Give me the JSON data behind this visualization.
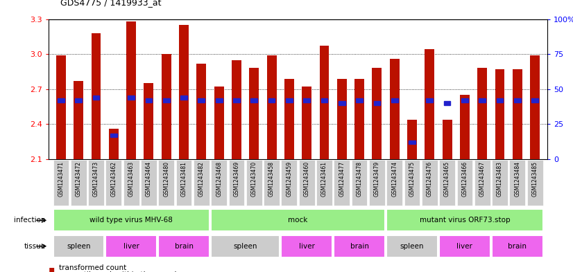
{
  "title": "GDS4775 / 1419933_at",
  "samples": [
    "GSM1243471",
    "GSM1243472",
    "GSM1243473",
    "GSM1243462",
    "GSM1243463",
    "GSM1243464",
    "GSM1243480",
    "GSM1243481",
    "GSM1243482",
    "GSM1243468",
    "GSM1243469",
    "GSM1243470",
    "GSM1243458",
    "GSM1243459",
    "GSM1243460",
    "GSM1243461",
    "GSM1243477",
    "GSM1243478",
    "GSM1243479",
    "GSM1243474",
    "GSM1243475",
    "GSM1243476",
    "GSM1243465",
    "GSM1243466",
    "GSM1243467",
    "GSM1243483",
    "GSM1243484",
    "GSM1243485"
  ],
  "transformed_count": [
    2.99,
    2.77,
    3.18,
    2.36,
    3.28,
    2.75,
    3.0,
    3.25,
    2.92,
    2.72,
    2.95,
    2.88,
    2.99,
    2.79,
    2.72,
    3.07,
    2.79,
    2.79,
    2.88,
    2.96,
    2.44,
    3.04,
    2.44,
    2.65,
    2.88,
    2.87,
    2.87,
    2.99
  ],
  "percentile_rank": [
    42,
    42,
    44,
    17,
    44,
    42,
    42,
    44,
    42,
    42,
    42,
    42,
    42,
    42,
    42,
    42,
    40,
    42,
    40,
    42,
    12,
    42,
    40,
    42,
    42,
    42,
    42,
    42
  ],
  "ymin": 2.1,
  "ymax": 3.3,
  "bar_color": "#bb1100",
  "dot_color": "#2222cc",
  "infection_groups": [
    {
      "label": "wild type virus MHV-68",
      "start": 0,
      "end": 9
    },
    {
      "label": "mock",
      "start": 9,
      "end": 19
    },
    {
      "label": "mutant virus ORF73.stop",
      "start": 19,
      "end": 28
    }
  ],
  "tissue_groups": [
    {
      "label": "spleen",
      "start": 0,
      "end": 3,
      "color": "#cccccc"
    },
    {
      "label": "liver",
      "start": 3,
      "end": 6,
      "color": "#ee66ee"
    },
    {
      "label": "brain",
      "start": 6,
      "end": 9,
      "color": "#ee66ee"
    },
    {
      "label": "spleen",
      "start": 9,
      "end": 13,
      "color": "#cccccc"
    },
    {
      "label": "liver",
      "start": 13,
      "end": 16,
      "color": "#ee66ee"
    },
    {
      "label": "brain",
      "start": 16,
      "end": 19,
      "color": "#ee66ee"
    },
    {
      "label": "spleen",
      "start": 19,
      "end": 22,
      "color": "#cccccc"
    },
    {
      "label": "liver",
      "start": 22,
      "end": 25,
      "color": "#ee66ee"
    },
    {
      "label": "brain",
      "start": 25,
      "end": 28,
      "color": "#ee66ee"
    }
  ],
  "inf_color": "#99ee88",
  "xtick_bg": "#cccccc"
}
